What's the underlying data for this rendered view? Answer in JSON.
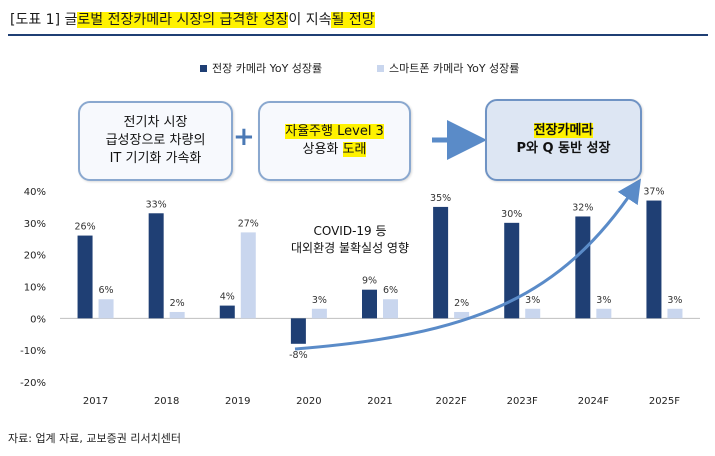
{
  "header": {
    "tag": "[도표 1]",
    "title_plain": "글",
    "title_highlight_1": "로벌 전장카메라 시장의 급격한 성장",
    "title_mid": "이 지속",
    "title_highlight_2": "될 전망"
  },
  "boxes": {
    "box1": [
      "전기차 시장",
      "급성장으로 차량의",
      "IT 기기화 가속화"
    ],
    "box2_line1_hl": "자율주행 Level 3",
    "box2_line2_pre": "상용화 ",
    "box2_line2_hl": "도래",
    "box3_line1": "전장카메라",
    "box3_line2": "P와 Q 동반 성장"
  },
  "plus_symbol": "+",
  "annotation": [
    "COVID-19 등",
    "대외환경 불확실성 영향"
  ],
  "source": "자료: 업계 자료, 교보증권 리서치센터",
  "colors": {
    "dark": "#1f3f74",
    "light": "#c9d6ee",
    "arrow": "#5a8bc8"
  },
  "chart_data": {
    "type": "bar",
    "categories": [
      "2017",
      "2018",
      "2019",
      "2020",
      "2021",
      "2022F",
      "2023F",
      "2024F",
      "2025F"
    ],
    "series": [
      {
        "name": "전장 카메라 YoY 성장률",
        "values": [
          26,
          33,
          4,
          -8,
          9,
          35,
          30,
          32,
          37
        ],
        "labels": [
          "26%",
          "33%",
          "4%",
          "-8%",
          "9%",
          "35%",
          "30%",
          "32%",
          "37%"
        ]
      },
      {
        "name": "스마트폰 카메라 YoY 성장률",
        "values": [
          6,
          2,
          27,
          3,
          6,
          2,
          3,
          3,
          3
        ],
        "labels": [
          "6%",
          "2%",
          "27%",
          "3%",
          "6%",
          "2%",
          "3%",
          "3%",
          "3%"
        ]
      }
    ],
    "ylim": [
      -20,
      40
    ],
    "yticks": [
      "40%",
      "30%",
      "20%",
      "10%",
      "0%",
      "-10%",
      "-20%"
    ],
    "legend_position": "top",
    "grid": false
  }
}
